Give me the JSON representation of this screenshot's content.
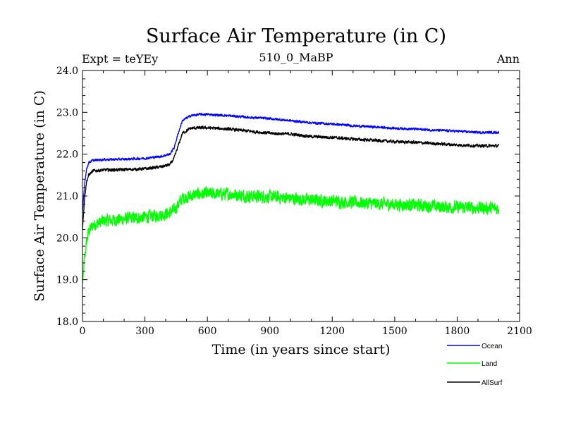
{
  "chart_data": {
    "type": "line",
    "title": "Surface Air Temperature (in C)",
    "subtitle": "510_0_MaBP",
    "expt_label": "Expt = teYEy",
    "season_label": "Ann",
    "xlabel": "Time (in years since start)",
    "ylabel": "Surface Air Temperature (in C)",
    "xlim": [
      0,
      2100
    ],
    "ylim": [
      18.0,
      24.0
    ],
    "x_ticks": [
      0,
      300,
      600,
      900,
      1200,
      1500,
      1800,
      2100
    ],
    "x_tick_labels": [
      "0",
      "300",
      "600",
      "900",
      "1200",
      "1500",
      "1800",
      "2100"
    ],
    "y_ticks": [
      18.0,
      19.0,
      20.0,
      21.0,
      22.0,
      23.0,
      24.0
    ],
    "y_tick_labels": [
      "18.0",
      "19.0",
      "20.0",
      "21.0",
      "22.0",
      "23.0",
      "24.0"
    ],
    "legend_position": "bottom-right",
    "colors": {
      "Ocean": "#0000ff",
      "Land": "#00ff00",
      "AllSurf": "#000000"
    },
    "series": [
      {
        "name": "Ocean",
        "color": "#0000ff",
        "noise": 0.04,
        "x": [
          0,
          10,
          20,
          30,
          50,
          100,
          200,
          300,
          380,
          420,
          440,
          460,
          480,
          520,
          560,
          600,
          700,
          800,
          900,
          1000,
          1100,
          1200,
          1300,
          1400,
          1500,
          1600,
          1700,
          1800,
          1900,
          2000
        ],
        "values": [
          20.6,
          21.3,
          21.65,
          21.8,
          21.85,
          21.87,
          21.88,
          21.9,
          21.95,
          22.0,
          22.15,
          22.5,
          22.8,
          22.92,
          22.95,
          22.95,
          22.92,
          22.88,
          22.85,
          22.8,
          22.75,
          22.72,
          22.68,
          22.65,
          22.62,
          22.6,
          22.57,
          22.55,
          22.52,
          22.52
        ]
      },
      {
        "name": "Land",
        "color": "#00ff00",
        "noise": 0.2,
        "x": [
          0,
          10,
          20,
          30,
          50,
          100,
          200,
          300,
          380,
          420,
          440,
          460,
          480,
          520,
          560,
          600,
          700,
          800,
          900,
          1000,
          1100,
          1200,
          1300,
          1400,
          1500,
          1600,
          1700,
          1800,
          1900,
          2000
        ],
        "values": [
          18.9,
          19.5,
          19.9,
          20.15,
          20.3,
          20.4,
          20.45,
          20.5,
          20.55,
          20.6,
          20.65,
          20.8,
          20.95,
          21.0,
          21.05,
          21.05,
          21.05,
          21.0,
          20.98,
          20.95,
          20.9,
          20.88,
          20.85,
          20.82,
          20.8,
          20.78,
          20.75,
          20.73,
          20.72,
          20.7
        ]
      },
      {
        "name": "AllSurf",
        "color": "#000000",
        "noise": 0.05,
        "x": [
          0,
          10,
          20,
          30,
          50,
          100,
          200,
          300,
          380,
          420,
          440,
          460,
          480,
          520,
          560,
          600,
          700,
          800,
          900,
          1000,
          1100,
          1200,
          1300,
          1400,
          1500,
          1600,
          1700,
          1800,
          1900,
          2000
        ],
        "values": [
          20.2,
          20.95,
          21.35,
          21.5,
          21.6,
          21.62,
          21.63,
          21.65,
          21.7,
          21.75,
          21.9,
          22.2,
          22.5,
          22.62,
          22.63,
          22.63,
          22.6,
          22.55,
          22.5,
          22.48,
          22.42,
          22.4,
          22.36,
          22.33,
          22.3,
          22.28,
          22.25,
          22.22,
          22.2,
          22.2
        ]
      }
    ]
  }
}
